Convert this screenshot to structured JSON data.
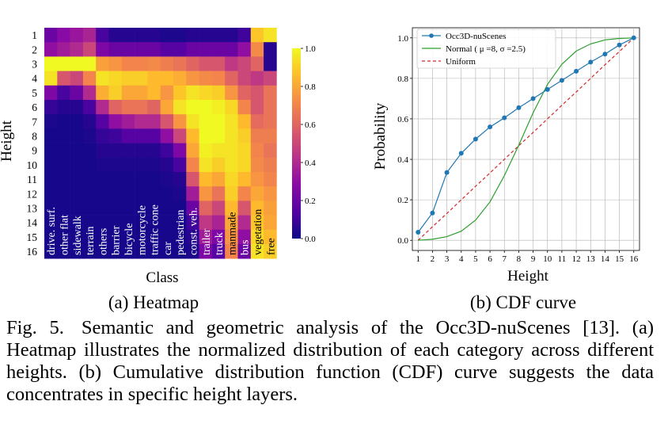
{
  "chart_data": [
    {
      "type": "heatmap",
      "title": "",
      "subtitle": "(a) Heatmap",
      "xlabel": "Class",
      "ylabel": "Height",
      "categories": [
        "drive. surf.",
        "other flat",
        "sidewalk",
        "terrain",
        "others",
        "barrier",
        "bicycle",
        "motorcycle",
        "traffic cone",
        "car",
        "pedestrian",
        "const. veh.",
        "trailer",
        "truck",
        "manmade",
        "bus",
        "vegetation",
        "free"
      ],
      "rows": [
        "1",
        "2",
        "3",
        "4",
        "5",
        "6",
        "7",
        "8",
        "9",
        "10",
        "11",
        "12",
        "13",
        "14",
        "15",
        "16"
      ],
      "values": [
        [
          0.2,
          0.28,
          0.33,
          0.38,
          0.12,
          0.05,
          0.05,
          0.05,
          0.05,
          0.03,
          0.03,
          0.05,
          0.05,
          0.05,
          0.05,
          0.1,
          0.88,
          0.95
        ],
        [
          0.3,
          0.35,
          0.4,
          0.5,
          0.25,
          0.2,
          0.2,
          0.2,
          0.2,
          0.15,
          0.15,
          0.2,
          0.2,
          0.2,
          0.2,
          0.3,
          0.72,
          0.05
        ],
        [
          1.0,
          1.0,
          1.0,
          1.0,
          0.78,
          0.75,
          0.7,
          0.7,
          0.72,
          0.68,
          0.65,
          0.6,
          0.55,
          0.55,
          0.45,
          0.5,
          0.6,
          0.05
        ],
        [
          0.95,
          0.55,
          0.5,
          0.7,
          0.95,
          0.92,
          0.9,
          0.9,
          0.85,
          0.85,
          0.82,
          0.75,
          0.72,
          0.7,
          0.6,
          0.5,
          0.45,
          0.5
        ],
        [
          0.25,
          0.12,
          0.2,
          0.4,
          0.82,
          0.9,
          0.8,
          0.8,
          0.85,
          0.75,
          0.88,
          0.95,
          0.92,
          0.9,
          0.75,
          0.6,
          0.55,
          0.65
        ],
        [
          0.08,
          0.05,
          0.05,
          0.12,
          0.4,
          0.6,
          0.65,
          0.65,
          0.6,
          0.8,
          0.95,
          1.0,
          1.0,
          0.98,
          0.92,
          0.7,
          0.55,
          0.65
        ],
        [
          0.03,
          0.02,
          0.02,
          0.05,
          0.15,
          0.3,
          0.35,
          0.4,
          0.4,
          0.55,
          0.75,
          0.95,
          1.0,
          1.0,
          0.95,
          0.85,
          0.62,
          0.65
        ],
        [
          0.02,
          0.02,
          0.02,
          0.03,
          0.08,
          0.1,
          0.15,
          0.15,
          0.15,
          0.3,
          0.5,
          0.85,
          1.0,
          1.0,
          0.95,
          0.9,
          0.68,
          0.68
        ],
        [
          0.02,
          0.02,
          0.02,
          0.02,
          0.05,
          0.05,
          0.05,
          0.05,
          0.05,
          0.1,
          0.25,
          0.8,
          0.98,
          0.95,
          0.95,
          0.92,
          0.7,
          0.65
        ],
        [
          0.02,
          0.02,
          0.02,
          0.02,
          0.03,
          0.03,
          0.03,
          0.03,
          0.03,
          0.05,
          0.12,
          0.7,
          0.95,
          0.9,
          0.95,
          0.92,
          0.72,
          0.68
        ],
        [
          0.02,
          0.02,
          0.02,
          0.02,
          0.02,
          0.02,
          0.02,
          0.02,
          0.02,
          0.03,
          0.05,
          0.55,
          0.85,
          0.8,
          0.92,
          0.85,
          0.75,
          0.7
        ],
        [
          0.02,
          0.02,
          0.02,
          0.02,
          0.02,
          0.02,
          0.02,
          0.02,
          0.02,
          0.02,
          0.03,
          0.35,
          0.75,
          0.65,
          0.9,
          0.7,
          0.8,
          0.75
        ],
        [
          0.02,
          0.02,
          0.02,
          0.02,
          0.02,
          0.02,
          0.02,
          0.02,
          0.02,
          0.02,
          0.02,
          0.2,
          0.6,
          0.5,
          0.85,
          0.55,
          0.85,
          0.78
        ],
        [
          0.02,
          0.02,
          0.02,
          0.02,
          0.02,
          0.02,
          0.02,
          0.02,
          0.02,
          0.02,
          0.02,
          0.1,
          0.45,
          0.38,
          0.8,
          0.4,
          0.88,
          0.8
        ],
        [
          0.02,
          0.02,
          0.02,
          0.02,
          0.02,
          0.02,
          0.02,
          0.02,
          0.02,
          0.02,
          0.02,
          0.05,
          0.35,
          0.25,
          0.75,
          0.3,
          0.92,
          0.85
        ],
        [
          0.02,
          0.02,
          0.02,
          0.02,
          0.02,
          0.02,
          0.02,
          0.02,
          0.02,
          0.02,
          0.02,
          0.03,
          0.25,
          0.15,
          0.7,
          0.2,
          0.95,
          0.9
        ]
      ],
      "colorbar": {
        "range": [
          0.0,
          1.0
        ],
        "ticks": [
          "0.0",
          "0.2",
          "0.4",
          "0.6",
          "0.8",
          "1.0"
        ],
        "colormap": "plasma"
      }
    },
    {
      "type": "line",
      "title": "",
      "subtitle": "(b) CDF curve",
      "xlabel": "Height",
      "ylabel": "Probability",
      "x": [
        1,
        2,
        3,
        4,
        5,
        6,
        7,
        8,
        9,
        10,
        11,
        12,
        13,
        14,
        15,
        16
      ],
      "xticks": [
        "1",
        "2",
        "3",
        "4",
        "5",
        "6",
        "7",
        "8",
        "9",
        "10",
        "11",
        "12",
        "13",
        "14",
        "15",
        "16"
      ],
      "yticks": [
        "0.0",
        "0.2",
        "0.4",
        "0.6",
        "0.8",
        "1.0"
      ],
      "xlim": [
        0.6,
        16.4
      ],
      "ylim": [
        -0.05,
        1.05
      ],
      "grid": true,
      "legend_position": "top-left",
      "series": [
        {
          "name": "Occ3D-nuScenes",
          "color": "#1f77b4",
          "style": "solid-markers",
          "values": [
            0.04,
            0.135,
            0.335,
            0.43,
            0.5,
            0.56,
            0.605,
            0.655,
            0.7,
            0.745,
            0.79,
            0.835,
            0.88,
            0.92,
            0.965,
            1.0
          ]
        },
        {
          "name": "Normal  ( μ =8, σ =2.5)",
          "color": "#2ca02c",
          "style": "solid",
          "values": [
            0.0,
            0.005,
            0.018,
            0.045,
            0.1,
            0.19,
            0.32,
            0.47,
            0.63,
            0.77,
            0.87,
            0.935,
            0.97,
            0.99,
            0.997,
            1.0
          ]
        },
        {
          "name": "Uniform",
          "color": "#d62728",
          "style": "dashed",
          "values": [
            0.0,
            0.067,
            0.133,
            0.2,
            0.267,
            0.333,
            0.4,
            0.467,
            0.533,
            0.6,
            0.667,
            0.733,
            0.8,
            0.867,
            0.933,
            1.0
          ]
        }
      ]
    }
  ],
  "caption": {
    "label": "Fig. 5.",
    "text": "Semantic and geometric analysis of the Occ3D-nuScenes [13]. (a) Heatmap illustrates the normalized distribution of each category across different heights. (b) Cumulative distribution function (CDF) curve suggests the data concentrates in specific height layers."
  }
}
